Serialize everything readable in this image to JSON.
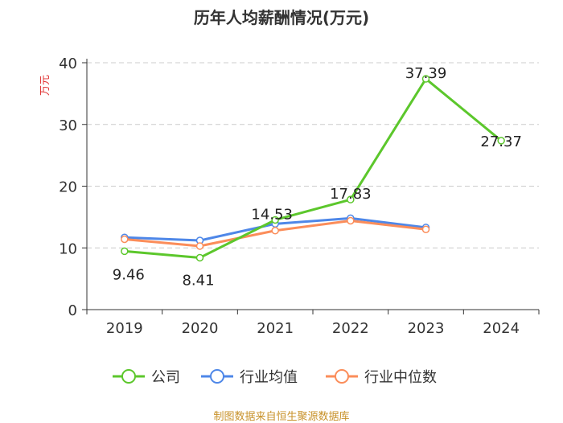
{
  "chart_data": {
    "type": "line",
    "title": "历年人均薪酬情况(万元)",
    "ylabel": "万元",
    "xlabel": "",
    "ylim": [
      0,
      40
    ],
    "yticks": [
      0,
      10,
      20,
      30,
      40
    ],
    "categories": [
      "2019",
      "2020",
      "2021",
      "2022",
      "2023",
      "2024"
    ],
    "grid": true,
    "legend_position": "bottom",
    "series": [
      {
        "name": "公司",
        "color": "#5cc72c",
        "values": [
          9.46,
          8.41,
          14.53,
          17.83,
          37.39,
          27.37
        ],
        "labels": [
          "9.46",
          "8.41",
          "14.53",
          "17.83",
          "37.39",
          "27.37"
        ]
      },
      {
        "name": "行业均值",
        "color": "#4e87e8",
        "values": [
          11.7,
          11.2,
          13.9,
          14.8,
          13.3,
          null
        ]
      },
      {
        "name": "行业中位数",
        "color": "#fb8d5a",
        "values": [
          11.4,
          10.3,
          12.8,
          14.4,
          13.0,
          null
        ]
      }
    ]
  },
  "source": "制图数据来自恒生聚源数据库"
}
